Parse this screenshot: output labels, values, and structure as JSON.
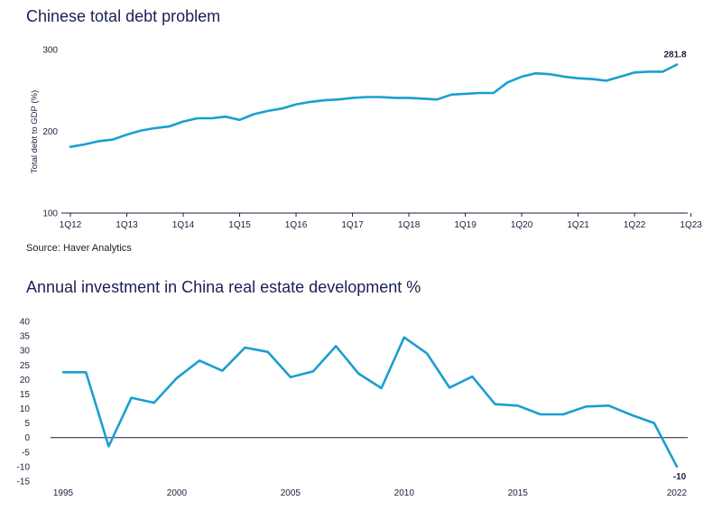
{
  "chart_data": [
    {
      "type": "line",
      "title": "Chinese total debt problem",
      "ylabel": "Total debt to GDP (%)",
      "xlabel": "",
      "ylim": [
        100,
        300
      ],
      "yticks": [
        100,
        200,
        300
      ],
      "grid": false,
      "color": "#1a9fd0",
      "x_tick_labels": [
        "1Q12",
        "1Q13",
        "1Q14",
        "1Q15",
        "1Q16",
        "1Q17",
        "1Q18",
        "1Q19",
        "1Q20",
        "1Q21",
        "1Q22",
        "1Q23"
      ],
      "series": [
        {
          "values": [
            181,
            184,
            188,
            190,
            196,
            201,
            204,
            206,
            212,
            216,
            216,
            218,
            214,
            221,
            225,
            228,
            233,
            236,
            238,
            239,
            241,
            242,
            242,
            241,
            241,
            240,
            239,
            245,
            246,
            247,
            247,
            260,
            267,
            271,
            270,
            267,
            265,
            264,
            262,
            267,
            272,
            273,
            273,
            281.8
          ]
        }
      ],
      "annotations": [
        {
          "label": "281.8",
          "point": "last"
        }
      ]
    },
    {
      "type": "line",
      "title": "Annual investment in China real estate development %",
      "xlabel": "",
      "ylabel": "",
      "ylim": [
        -15,
        40
      ],
      "yticks": [
        -15,
        -10,
        -5,
        0,
        5,
        10,
        15,
        20,
        25,
        30,
        35,
        40
      ],
      "grid": false,
      "zero_line": true,
      "color": "#1a9fd0",
      "x_tick_labels": [
        "1995",
        "2000",
        "2005",
        "2010",
        "2015",
        "2022"
      ],
      "x": [
        1995,
        1996,
        1997,
        1998,
        1999,
        2000,
        2001,
        2002,
        2003,
        2004,
        2005,
        2006,
        2007,
        2008,
        2009,
        2010,
        2011,
        2012,
        2013,
        2014,
        2015,
        2016,
        2017,
        2018,
        2019,
        2020,
        2021,
        2022
      ],
      "series": [
        {
          "values": [
            22.5,
            22.5,
            -3.0,
            13.7,
            12.0,
            20.5,
            26.5,
            23.0,
            31.0,
            29.5,
            20.8,
            22.8,
            31.5,
            22.0,
            17.0,
            34.5,
            29.0,
            17.2,
            21.0,
            11.5,
            11.0,
            8.0,
            8.0,
            10.7,
            11.0,
            7.8,
            5.0,
            -10
          ]
        }
      ],
      "annotations": [
        {
          "label": "-10",
          "point": "last"
        }
      ]
    }
  ],
  "source": "Source: Haver Analytics"
}
